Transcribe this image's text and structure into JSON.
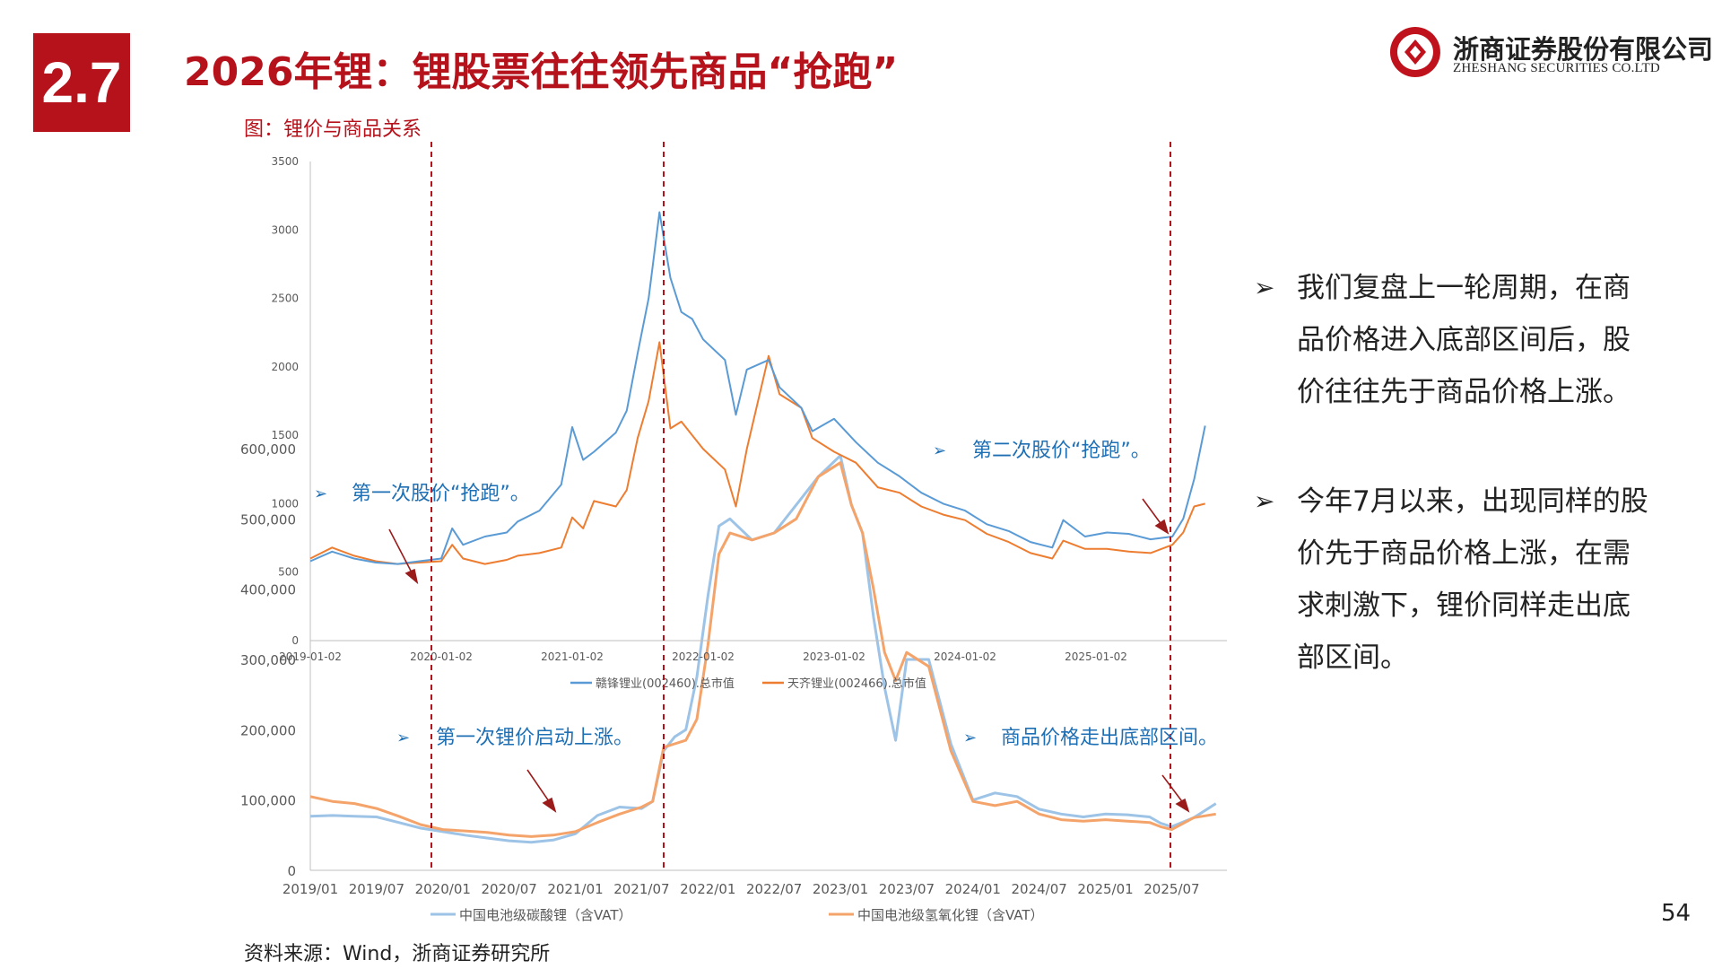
{
  "header": {
    "section_number": "2.7",
    "title": "2026年锂：锂股票往往领先商品“抢跑”"
  },
  "logo": {
    "name_cn": "浙商证券股份有限公司",
    "name_en": "ZHESHANG SECURITIES CO.LTD",
    "brand_color": "#c0121c"
  },
  "figure": {
    "title": "图：锂价与商品关系"
  },
  "annotations": {
    "stock_first": "第一次股价“抢跑”。",
    "stock_second": "第二次股价“抢跑”。",
    "price_first": "第一次锂价启动上涨。",
    "price_second": "商品价格走出底部区间。"
  },
  "bullets": [
    {
      "icon": "➢",
      "text": "我们复盘上一轮周期，在商品价格进入底部区间后，股价往往先于商品价格上涨。"
    },
    {
      "icon": "➢",
      "text": "今年7月以来，出现同样的股价先于商品价格上涨，在需求刺激下，锂价同样走出底部区间。"
    }
  ],
  "page_number": "54",
  "source": "资料来源：Wind，浙商证券研究所",
  "colors": {
    "accent_red": "#b5121b",
    "series_blue": "#5b9bd5",
    "series_orange": "#ed7d31",
    "annotation_blue": "#1f6fb4",
    "price_blue": "#9dc3e6",
    "price_orange": "#f4a46a"
  },
  "chart_data": [
    {
      "type": "line",
      "title": "",
      "xlabel": "",
      "ylabel": "",
      "ylim": [
        0,
        3500
      ],
      "y_ticks": [
        "0",
        "500",
        "1000",
        "1500",
        "2000",
        "2500",
        "3000",
        "3500"
      ],
      "x_ticks": [
        "2019-01-02",
        "2020-01-02",
        "2021-01-02",
        "2022-01-02",
        "2023-01-02",
        "2024-01-02",
        "2025-01-02"
      ],
      "grid": false,
      "legend": "bottom",
      "series": [
        {
          "name": "赣锋锂业(002460).总市值",
          "x": [
            "2019-01",
            "2019-03",
            "2019-05",
            "2019-07",
            "2019-09",
            "2019-11",
            "2020-01",
            "2020-02",
            "2020-03",
            "2020-05",
            "2020-07",
            "2020-08",
            "2020-10",
            "2020-12",
            "2021-01",
            "2021-02",
            "2021-03",
            "2021-05",
            "2021-06",
            "2021-07",
            "2021-08",
            "2021-09",
            "2021-10",
            "2021-11",
            "2021-12",
            "2022-01",
            "2022-03",
            "2022-04",
            "2022-05",
            "2022-07",
            "2022-08",
            "2022-10",
            "2022-11",
            "2023-01",
            "2023-03",
            "2023-05",
            "2023-07",
            "2023-09",
            "2023-11",
            "2024-01",
            "2024-03",
            "2024-05",
            "2024-07",
            "2024-09",
            "2024-10",
            "2024-12",
            "2025-02",
            "2025-04",
            "2025-06",
            "2025-08",
            "2025-09",
            "2025-10",
            "2025-11"
          ],
          "values": [
            580,
            650,
            600,
            570,
            560,
            580,
            600,
            820,
            700,
            760,
            790,
            870,
            950,
            1140,
            1560,
            1320,
            1380,
            1520,
            1680,
            2100,
            2500,
            3130,
            2650,
            2400,
            2350,
            2200,
            2050,
            1650,
            1980,
            2050,
            1850,
            1700,
            1530,
            1620,
            1450,
            1300,
            1200,
            1080,
            1000,
            950,
            850,
            800,
            720,
            680,
            880,
            760,
            790,
            780,
            740,
            760,
            890,
            1180,
            1570
          ]
        },
        {
          "name": "天齐锂业(002466).总市值",
          "x": [
            "2019-01",
            "2019-03",
            "2019-05",
            "2019-07",
            "2019-09",
            "2019-11",
            "2020-01",
            "2020-02",
            "2020-03",
            "2020-05",
            "2020-07",
            "2020-08",
            "2020-10",
            "2020-12",
            "2021-01",
            "2021-02",
            "2021-03",
            "2021-05",
            "2021-06",
            "2021-07",
            "2021-08",
            "2021-09",
            "2021-10",
            "2021-11",
            "2021-12",
            "2022-01",
            "2022-03",
            "2022-04",
            "2022-05",
            "2022-07",
            "2022-08",
            "2022-10",
            "2022-11",
            "2023-01",
            "2023-03",
            "2023-05",
            "2023-07",
            "2023-09",
            "2023-11",
            "2024-01",
            "2024-03",
            "2024-05",
            "2024-07",
            "2024-09",
            "2024-10",
            "2024-12",
            "2025-02",
            "2025-04",
            "2025-06",
            "2025-08",
            "2025-09",
            "2025-10",
            "2025-11"
          ],
          "values": [
            600,
            680,
            620,
            580,
            560,
            570,
            580,
            700,
            600,
            560,
            590,
            620,
            640,
            680,
            900,
            820,
            1020,
            980,
            1100,
            1480,
            1750,
            2180,
            1550,
            1600,
            1500,
            1400,
            1250,
            980,
            1400,
            2080,
            1800,
            1700,
            1480,
            1380,
            1300,
            1120,
            1080,
            980,
            920,
            880,
            780,
            720,
            640,
            600,
            730,
            670,
            670,
            650,
            640,
            700,
            790,
            980,
            1000
          ]
        }
      ]
    },
    {
      "type": "line",
      "title": "",
      "xlabel": "",
      "ylabel": "",
      "ylim": [
        0,
        600000
      ],
      "y_ticks": [
        "0",
        "100,000",
        "200,000",
        "300,000",
        "400,000",
        "500,000",
        "600,000"
      ],
      "x_ticks": [
        "2019/01",
        "2019/07",
        "2020/01",
        "2020/07",
        "2021/01",
        "2021/07",
        "2022/01",
        "2022/07",
        "2023/01",
        "2023/07",
        "2024/01",
        "2024/07",
        "2025/01",
        "2025/07"
      ],
      "grid": false,
      "legend": "bottom",
      "series": [
        {
          "name": "中国电池级碳酸锂（含VAT）",
          "x": [
            "2019-01",
            "2019-03",
            "2019-05",
            "2019-07",
            "2019-09",
            "2019-11",
            "2020-01",
            "2020-03",
            "2020-05",
            "2020-07",
            "2020-09",
            "2020-11",
            "2021-01",
            "2021-03",
            "2021-05",
            "2021-07",
            "2021-08",
            "2021-09",
            "2021-10",
            "2021-11",
            "2021-12",
            "2022-01",
            "2022-02",
            "2022-03",
            "2022-05",
            "2022-07",
            "2022-09",
            "2022-11",
            "2023-01",
            "2023-02",
            "2023-03",
            "2023-04",
            "2023-05",
            "2023-06",
            "2023-07",
            "2023-09",
            "2023-11",
            "2024-01",
            "2024-03",
            "2024-05",
            "2024-07",
            "2024-09",
            "2024-11",
            "2025-01",
            "2025-03",
            "2025-05",
            "2025-06",
            "2025-07",
            "2025-09",
            "2025-11"
          ],
          "values": [
            77000,
            78000,
            77000,
            76000,
            68000,
            60000,
            55000,
            50000,
            46000,
            42000,
            40000,
            43000,
            52000,
            78000,
            90000,
            88000,
            98000,
            170000,
            190000,
            200000,
            275000,
            390000,
            490000,
            500000,
            470000,
            480000,
            520000,
            560000,
            590000,
            520000,
            480000,
            360000,
            260000,
            185000,
            300000,
            300000,
            180000,
            100000,
            110000,
            105000,
            87000,
            80000,
            76000,
            80000,
            79000,
            76000,
            67000,
            62000,
            75000,
            95000
          ]
        },
        {
          "name": "中国电池级氢氧化锂（含VAT）",
          "x": [
            "2019-01",
            "2019-03",
            "2019-05",
            "2019-07",
            "2019-09",
            "2019-11",
            "2020-01",
            "2020-03",
            "2020-05",
            "2020-07",
            "2020-09",
            "2020-11",
            "2021-01",
            "2021-03",
            "2021-05",
            "2021-07",
            "2021-08",
            "2021-09",
            "2021-10",
            "2021-11",
            "2021-12",
            "2022-01",
            "2022-02",
            "2022-03",
            "2022-05",
            "2022-07",
            "2022-09",
            "2022-11",
            "2023-01",
            "2023-02",
            "2023-03",
            "2023-04",
            "2023-05",
            "2023-06",
            "2023-07",
            "2023-09",
            "2023-11",
            "2024-01",
            "2024-03",
            "2024-05",
            "2024-07",
            "2024-09",
            "2024-11",
            "2025-01",
            "2025-03",
            "2025-05",
            "2025-06",
            "2025-07",
            "2025-09",
            "2025-11"
          ],
          "values": [
            105000,
            98000,
            95000,
            88000,
            77000,
            65000,
            58000,
            56000,
            54000,
            50000,
            48000,
            50000,
            55000,
            68000,
            80000,
            90000,
            98000,
            175000,
            180000,
            185000,
            215000,
            320000,
            450000,
            480000,
            470000,
            480000,
            500000,
            560000,
            580000,
            520000,
            480000,
            400000,
            310000,
            270000,
            310000,
            290000,
            170000,
            98000,
            92000,
            98000,
            80000,
            72000,
            70000,
            72000,
            70000,
            68000,
            62000,
            58000,
            75000,
            80000
          ]
        }
      ]
    }
  ]
}
